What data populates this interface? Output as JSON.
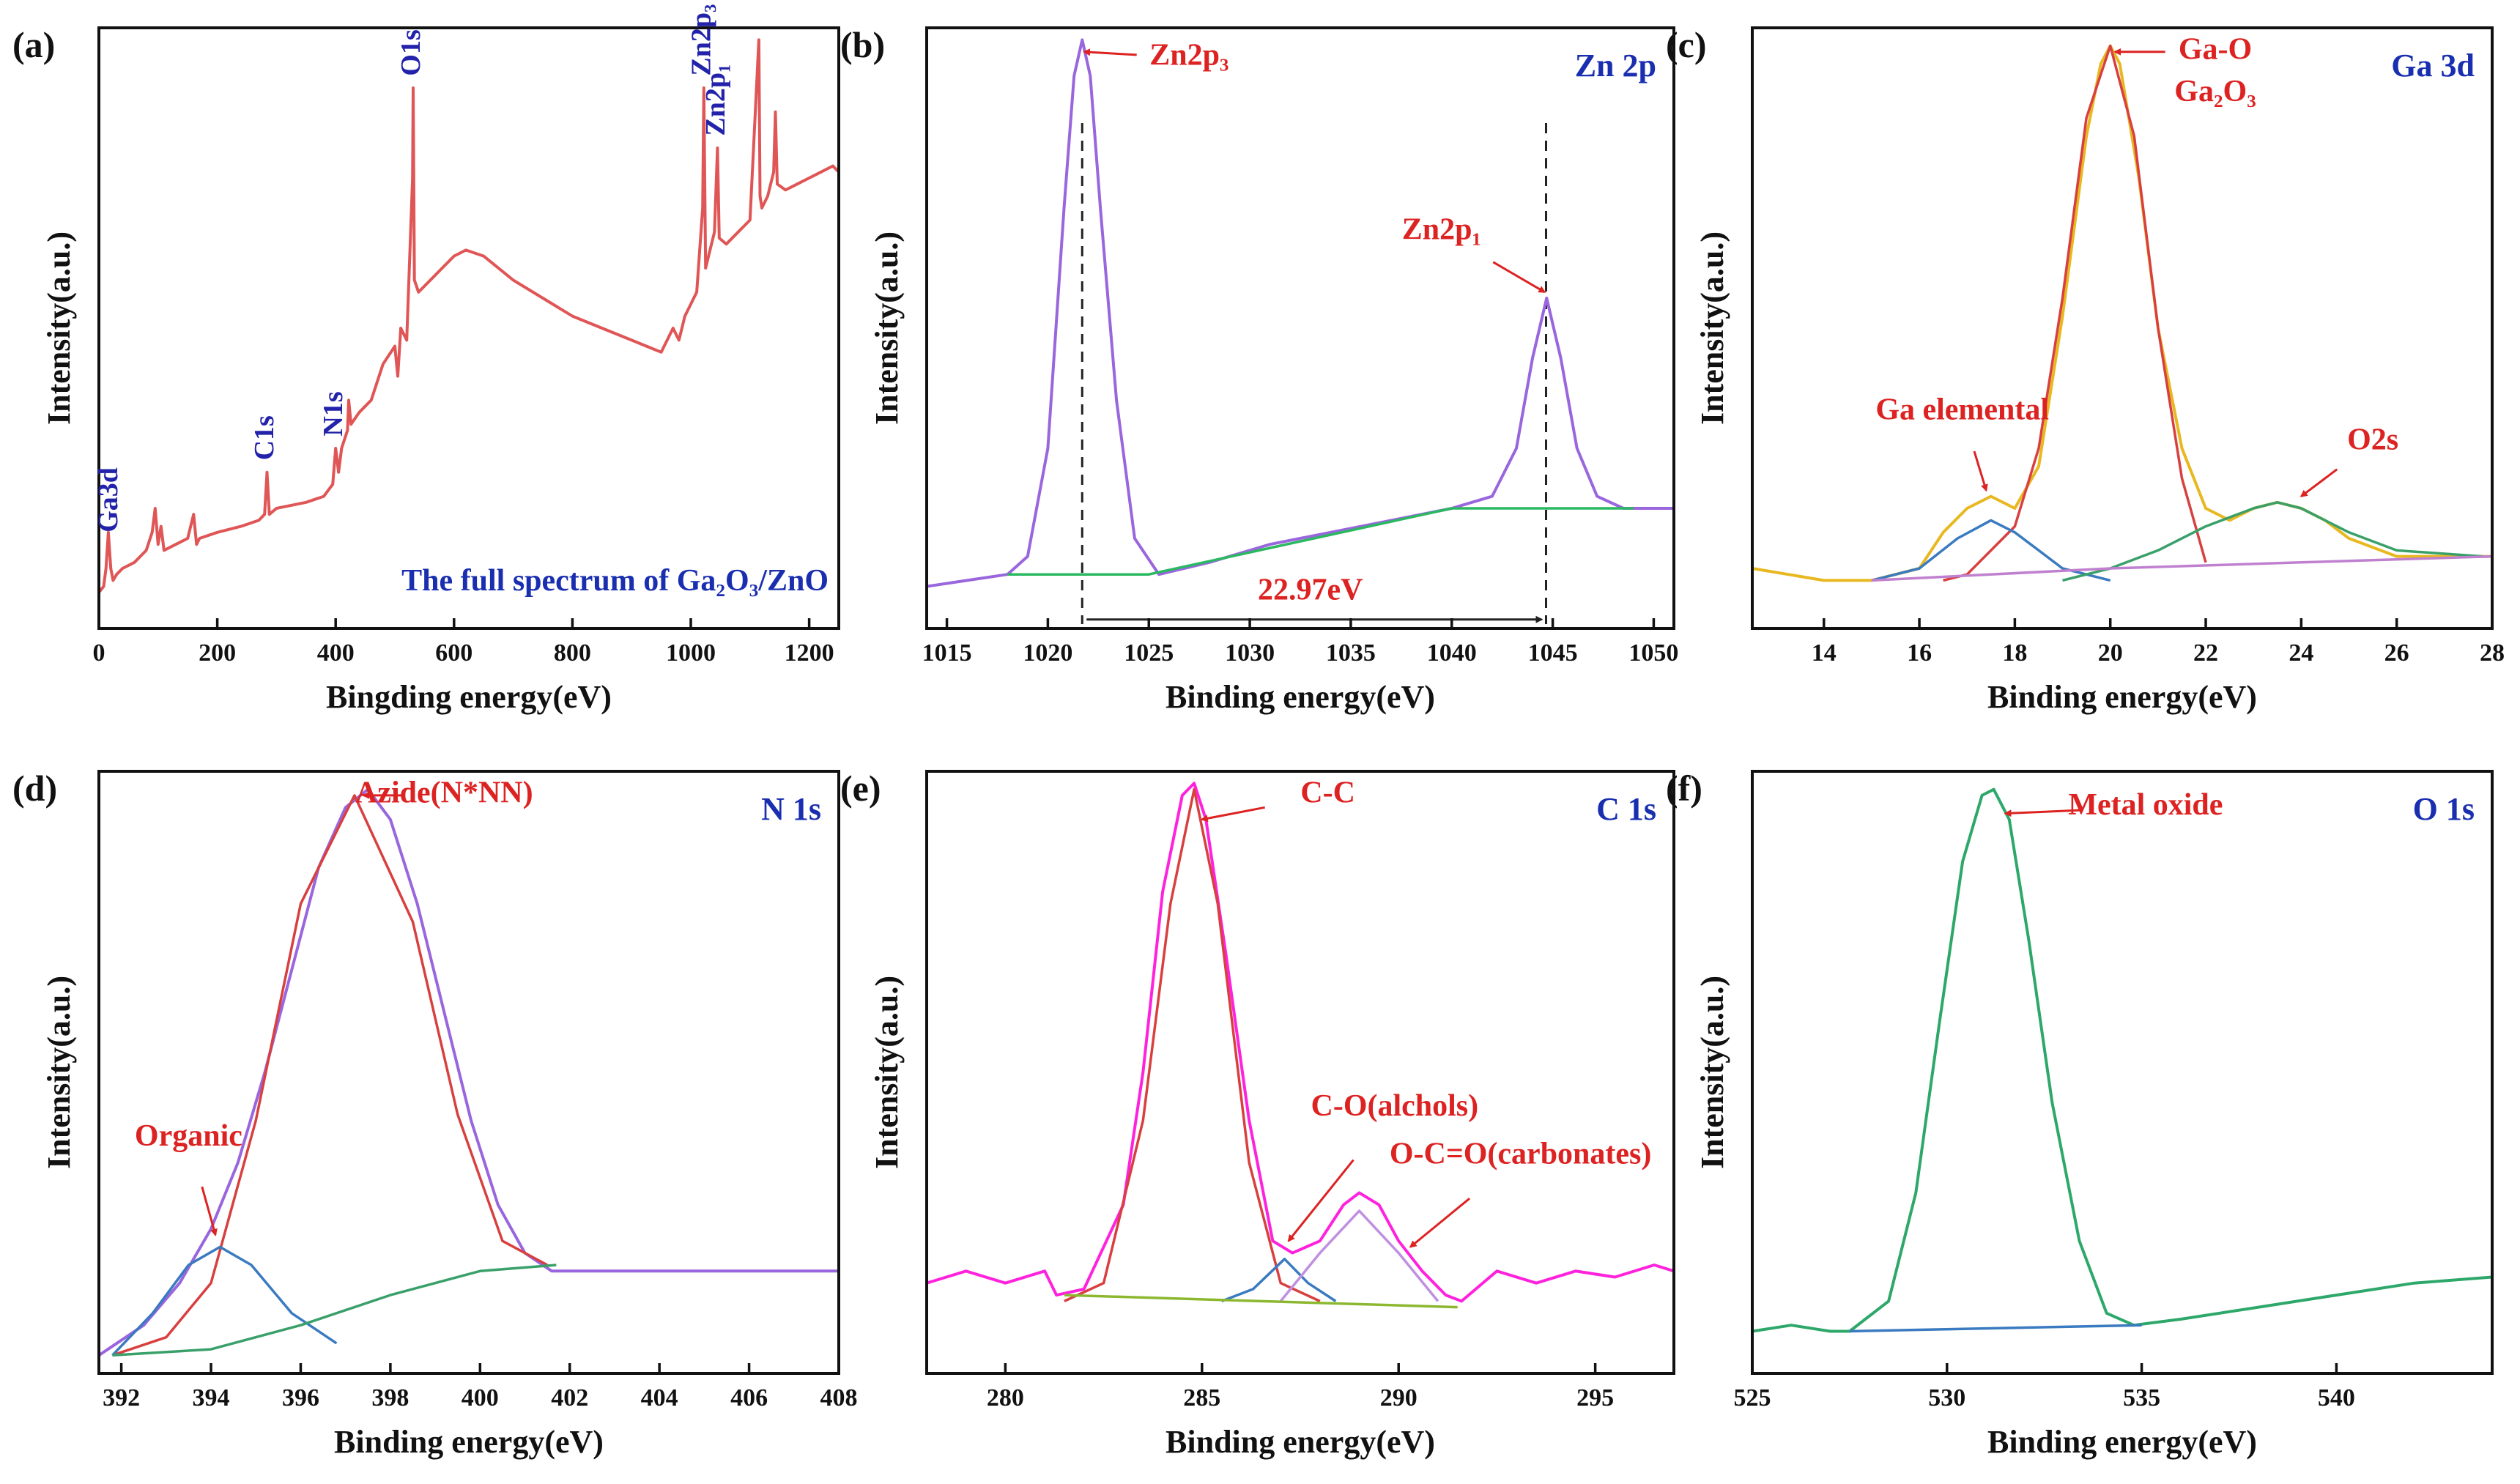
{
  "chart_data": [
    {
      "type": "line",
      "panel_label": "(a)",
      "title": "",
      "xlabel": "Bingding energy(eV)",
      "ylabel": "Intensity(a.u.)",
      "xlim": [
        0,
        1250
      ],
      "ylim": [
        0,
        1
      ],
      "xticks": [
        0,
        200,
        400,
        600,
        800,
        1000,
        1200
      ],
      "series": [
        {
          "name": "",
          "color": "#e05555",
          "role": "data",
          "x": [
            0,
            8,
            12,
            16,
            20,
            24,
            30,
            40,
            60,
            80,
            90,
            95,
            100,
            105,
            110,
            130,
            150,
            160,
            165,
            170,
            200,
            240,
            270,
            280,
            284,
            288,
            300,
            350,
            380,
            395,
            400,
            405,
            410,
            420,
            422,
            426,
            440,
            460,
            480,
            500,
            505,
            510,
            520,
            530,
            531,
            533,
            540,
            560,
            580,
            600,
            620,
            650,
            700,
            750,
            800,
            850,
            900,
            950,
            970,
            980,
            990,
            1000,
            1010,
            1020,
            1022,
            1025,
            1030,
            1040,
            1045,
            1048,
            1060,
            1080,
            1100,
            1115,
            1117,
            1120,
            1130,
            1140,
            1143,
            1146,
            1160,
            1180,
            1200,
            1220,
            1240,
            1250
          ],
          "y": [
            0.06,
            0.07,
            0.1,
            0.16,
            0.1,
            0.08,
            0.09,
            0.1,
            0.11,
            0.13,
            0.16,
            0.2,
            0.14,
            0.17,
            0.13,
            0.14,
            0.15,
            0.19,
            0.14,
            0.15,
            0.16,
            0.17,
            0.18,
            0.19,
            0.26,
            0.19,
            0.2,
            0.21,
            0.22,
            0.24,
            0.3,
            0.26,
            0.3,
            0.33,
            0.38,
            0.34,
            0.36,
            0.38,
            0.44,
            0.47,
            0.42,
            0.5,
            0.48,
            0.75,
            0.9,
            0.58,
            0.56,
            0.58,
            0.6,
            0.62,
            0.63,
            0.62,
            0.58,
            0.55,
            0.52,
            0.5,
            0.48,
            0.46,
            0.5,
            0.48,
            0.52,
            0.54,
            0.56,
            0.7,
            0.9,
            0.6,
            0.62,
            0.66,
            0.8,
            0.65,
            0.64,
            0.66,
            0.68,
            0.98,
            0.72,
            0.7,
            0.72,
            0.76,
            0.86,
            0.74,
            0.73,
            0.74,
            0.75,
            0.76,
            0.77,
            0.76
          ]
        }
      ],
      "annotations": [
        {
          "text": "Ga3d",
          "x": 20,
          "y": 0.16,
          "rotate": -90,
          "color": "#2222aa"
        },
        {
          "text": "C1s",
          "x": 284,
          "y": 0.28,
          "rotate": -90,
          "color": "#2222aa"
        },
        {
          "text": "N1s",
          "x": 400,
          "y": 0.32,
          "rotate": -90,
          "color": "#2222aa"
        },
        {
          "text": "O1s",
          "x": 531,
          "y": 0.92,
          "rotate": -90,
          "color": "#2222aa"
        },
        {
          "text": "Zn2p₃",
          "x": 1022,
          "y": 0.92,
          "rotate": -90,
          "color": "#2222aa"
        },
        {
          "text": "Zn2p₁",
          "x": 1046,
          "y": 0.82,
          "rotate": -90,
          "color": "#2222aa"
        }
      ],
      "caption": "The full spectrum of Ga₂O₃/ZnO"
    },
    {
      "type": "line",
      "panel_label": "(b)",
      "title": "Zn 2p",
      "xlabel": "Binding energy(eV)",
      "ylabel": "Intensity(a.u.)",
      "xlim": [
        1014,
        1051
      ],
      "ylim": [
        0,
        1
      ],
      "xticks": [
        1015,
        1020,
        1025,
        1030,
        1035,
        1040,
        1045,
        1050
      ],
      "series": [
        {
          "name": "",
          "color": "#9a66dd",
          "role": "data",
          "x": [
            1014,
            1016,
            1018,
            1019,
            1020,
            1020.8,
            1021.3,
            1021.7,
            1022.1,
            1022.6,
            1023.4,
            1024.3,
            1025.5,
            1028,
            1031,
            1034,
            1037,
            1040,
            1042,
            1043.2,
            1044,
            1044.7,
            1045.4,
            1046.2,
            1047.2,
            1048.5,
            1050,
            1051
          ],
          "y": [
            0.07,
            0.08,
            0.09,
            0.12,
            0.3,
            0.7,
            0.92,
            0.98,
            0.92,
            0.7,
            0.38,
            0.15,
            0.09,
            0.11,
            0.14,
            0.16,
            0.18,
            0.2,
            0.22,
            0.3,
            0.45,
            0.55,
            0.45,
            0.3,
            0.22,
            0.2,
            0.2,
            0.2
          ]
        },
        {
          "name": "",
          "color": "#2ab860",
          "role": "baseline",
          "x": [
            1018,
            1025,
            1040,
            1049
          ],
          "y": [
            0.09,
            0.09,
            0.2,
            0.2
          ]
        }
      ],
      "annotations": [
        {
          "text": "Zn2p₃",
          "x": 1027,
          "y": 0.95,
          "color": "#dd2222",
          "arrow_to": [
            1021.8,
            0.96
          ]
        },
        {
          "text": "Zn2p₁",
          "x": 1039.5,
          "y": 0.66,
          "color": "#dd2222",
          "arrow_to": [
            1044.6,
            0.56
          ]
        },
        {
          "text": "22.97eV",
          "x": 1033,
          "y": 0.06,
          "color": "#dd2222"
        }
      ],
      "vlines": [
        1021.7,
        1044.67
      ]
    },
    {
      "type": "line",
      "panel_label": "(c)",
      "title": "Ga 3d",
      "xlabel": "Binding energy(eV)",
      "ylabel": "Intensity(a.u.)",
      "xlim": [
        12.5,
        28
      ],
      "ylim": [
        0,
        1
      ],
      "xticks": [
        14,
        16,
        18,
        20,
        22,
        24,
        26,
        28
      ],
      "series": [
        {
          "name": "",
          "color": "#e8b820",
          "role": "envelope",
          "x": [
            12.5,
            14,
            15,
            16,
            16.5,
            17,
            17.5,
            18,
            18.5,
            19,
            19.5,
            19.8,
            20,
            20.2,
            20.6,
            21,
            21.5,
            22,
            22.5,
            23,
            23.5,
            24,
            24.5,
            25,
            26,
            27,
            28
          ],
          "y": [
            0.1,
            0.08,
            0.08,
            0.1,
            0.16,
            0.2,
            0.22,
            0.2,
            0.27,
            0.52,
            0.82,
            0.94,
            0.97,
            0.94,
            0.75,
            0.5,
            0.3,
            0.2,
            0.18,
            0.2,
            0.21,
            0.2,
            0.18,
            0.15,
            0.12,
            0.12,
            0.12
          ]
        },
        {
          "name": "",
          "color": "#d84040",
          "role": "component",
          "x": [
            16.5,
            17,
            18,
            18.5,
            19,
            19.5,
            20,
            20.5,
            21,
            21.5,
            22
          ],
          "y": [
            0.08,
            0.09,
            0.17,
            0.3,
            0.55,
            0.85,
            0.97,
            0.82,
            0.5,
            0.25,
            0.11
          ]
        },
        {
          "name": "",
          "color": "#3a7ac0",
          "role": "component",
          "x": [
            15,
            16,
            16.8,
            17.5,
            18,
            18.5,
            19,
            20
          ],
          "y": [
            0.08,
            0.1,
            0.15,
            0.18,
            0.16,
            0.13,
            0.1,
            0.08
          ]
        },
        {
          "name": "",
          "color": "#3aa06a",
          "role": "component",
          "x": [
            19,
            20,
            21,
            22,
            23,
            23.5,
            24,
            25,
            26,
            27.8
          ],
          "y": [
            0.08,
            0.1,
            0.13,
            0.17,
            0.2,
            0.21,
            0.2,
            0.16,
            0.13,
            0.12
          ]
        },
        {
          "name": "",
          "color": "#c080d0",
          "role": "baseline",
          "x": [
            15,
            20,
            24,
            28
          ],
          "y": [
            0.08,
            0.1,
            0.11,
            0.12
          ]
        }
      ],
      "annotations": [
        {
          "text": "Ga-O",
          "x": 22.2,
          "y": 0.96,
          "color": "#dd2222",
          "arrow_to": [
            20.1,
            0.96
          ]
        },
        {
          "text": "Ga₂O₃",
          "x": 22.2,
          "y": 0.89,
          "color": "#dd2222"
        },
        {
          "text": "Ga elemental",
          "x": 16.9,
          "y": 0.36,
          "color": "#dd2222",
          "arrow_to": [
            17.4,
            0.23
          ]
        },
        {
          "text": "O2s",
          "x": 25.5,
          "y": 0.31,
          "color": "#dd2222",
          "arrow_to": [
            24,
            0.22
          ]
        }
      ]
    },
    {
      "type": "line",
      "panel_label": "(d)",
      "title": "N 1s",
      "xlabel": "Binding energy(eV)",
      "ylabel": "Intensity(a.u.)",
      "xlim": [
        391.5,
        408
      ],
      "ylim": [
        0,
        1
      ],
      "xticks": [
        392,
        394,
        396,
        398,
        400,
        402,
        404,
        406,
        408
      ],
      "series": [
        {
          "name": "",
          "color": "#9a66dd",
          "role": "envelope",
          "x": [
            391.5,
            392.5,
            393.3,
            394,
            394.6,
            395.2,
            395.8,
            396.4,
            397,
            397.5,
            398,
            398.6,
            399.2,
            399.8,
            400.4,
            401,
            401.6,
            403,
            405,
            408
          ],
          "y": [
            0.03,
            0.08,
            0.15,
            0.24,
            0.35,
            0.5,
            0.67,
            0.84,
            0.94,
            0.97,
            0.92,
            0.78,
            0.6,
            0.42,
            0.28,
            0.2,
            0.17,
            0.17,
            0.17,
            0.17
          ]
        },
        {
          "name": "",
          "color": "#d84040",
          "role": "component",
          "x": [
            391.8,
            393,
            394,
            395,
            396,
            397.2,
            398.5,
            399.5,
            400.5,
            401.5
          ],
          "y": [
            0.03,
            0.06,
            0.15,
            0.42,
            0.78,
            0.96,
            0.75,
            0.43,
            0.22,
            0.18
          ]
        },
        {
          "name": "",
          "color": "#3a7ac0",
          "role": "component",
          "x": [
            391.8,
            392.7,
            393.5,
            394.2,
            394.9,
            395.8,
            396.8
          ],
          "y": [
            0.03,
            0.1,
            0.18,
            0.21,
            0.18,
            0.1,
            0.05
          ]
        },
        {
          "name": "",
          "color": "#3aa06a",
          "role": "baseline",
          "x": [
            391.8,
            394,
            396,
            398,
            400,
            401.7
          ],
          "y": [
            0.03,
            0.04,
            0.08,
            0.13,
            0.17,
            0.18
          ]
        }
      ],
      "annotations": [
        {
          "text": "Azide(N*NN)",
          "x": 399.2,
          "y": 0.96,
          "color": "#dd2222",
          "arrow_to": [
            397.4,
            0.96
          ]
        },
        {
          "text": "Organic",
          "x": 393.5,
          "y": 0.39,
          "color": "#dd2222",
          "arrow_to": [
            394.1,
            0.23
          ]
        }
      ]
    },
    {
      "type": "line",
      "panel_label": "(e)",
      "title": "C 1s",
      "xlabel": "Binding energy(eV)",
      "ylabel": "Intensity(a.u.)",
      "xlim": [
        278,
        297
      ],
      "ylim": [
        0,
        1
      ],
      "xticks": [
        280,
        285,
        290,
        295
      ],
      "series": [
        {
          "name": "",
          "color": "#ff22dd",
          "role": "data",
          "x": [
            278,
            279,
            280,
            281,
            281.3,
            282,
            283,
            283.5,
            284,
            284.5,
            284.8,
            285.1,
            285.6,
            286.2,
            286.8,
            287.3,
            288,
            288.6,
            289,
            289.5,
            290,
            290.6,
            291.2,
            291.6,
            292.5,
            293.5,
            294.5,
            295.5,
            296.5,
            297
          ],
          "y": [
            0.15,
            0.17,
            0.15,
            0.17,
            0.13,
            0.14,
            0.28,
            0.5,
            0.8,
            0.96,
            0.98,
            0.92,
            0.7,
            0.42,
            0.22,
            0.2,
            0.22,
            0.28,
            0.3,
            0.28,
            0.22,
            0.17,
            0.13,
            0.12,
            0.17,
            0.15,
            0.17,
            0.16,
            0.18,
            0.17
          ]
        },
        {
          "name": "",
          "color": "#d84040",
          "role": "component",
          "x": [
            281.5,
            282.5,
            283.5,
            284.2,
            284.8,
            285.4,
            286.2,
            287,
            288
          ],
          "y": [
            0.12,
            0.15,
            0.42,
            0.78,
            0.97,
            0.78,
            0.35,
            0.15,
            0.12
          ]
        },
        {
          "name": "",
          "color": "#3a7ac0",
          "role": "component",
          "x": [
            285.5,
            286.3,
            287.1,
            287.7,
            288.4
          ],
          "y": [
            0.12,
            0.14,
            0.19,
            0.15,
            0.12
          ]
        },
        {
          "name": "",
          "color": "#c090e0",
          "role": "component",
          "x": [
            287,
            288,
            289,
            290,
            291
          ],
          "y": [
            0.12,
            0.2,
            0.27,
            0.2,
            0.12
          ]
        },
        {
          "name": "",
          "color": "#8cb830",
          "role": "baseline",
          "x": [
            281.5,
            291.5
          ],
          "y": [
            0.13,
            0.11
          ]
        }
      ],
      "annotations": [
        {
          "text": "C-C",
          "x": 288.2,
          "y": 0.96,
          "color": "#dd2222",
          "arrow_to": [
            285,
            0.92
          ]
        },
        {
          "text": "C-O(alchols)",
          "x": 289.9,
          "y": 0.44,
          "color": "#dd2222",
          "arrow_to": [
            287.2,
            0.22
          ]
        },
        {
          "text": "O-C=O(carbonates)",
          "x": 293.1,
          "y": 0.36,
          "color": "#dd2222",
          "arrow_to": [
            290.3,
            0.21
          ]
        }
      ]
    },
    {
      "type": "line",
      "panel_label": "(f)",
      "title": "O 1s",
      "xlabel": "Binding energy(eV)",
      "ylabel": "Intensity(a.u.)",
      "xlim": [
        525,
        544
      ],
      "ylim": [
        0,
        1
      ],
      "xticks": [
        525,
        530,
        535,
        540
      ],
      "series": [
        {
          "name": "",
          "color": "#2ea86a",
          "role": "data",
          "x": [
            525,
            526,
            527,
            527.5,
            528.5,
            529.2,
            529.8,
            530.4,
            530.9,
            531.2,
            531.6,
            532.1,
            532.7,
            533.4,
            534.1,
            534.8,
            536,
            538,
            540,
            542,
            544
          ],
          "y": [
            0.07,
            0.08,
            0.07,
            0.07,
            0.12,
            0.3,
            0.58,
            0.85,
            0.96,
            0.97,
            0.92,
            0.72,
            0.45,
            0.22,
            0.1,
            0.08,
            0.09,
            0.11,
            0.13,
            0.15,
            0.16
          ]
        },
        {
          "name": "",
          "color": "#3a7ac0",
          "role": "baseline",
          "x": [
            527.5,
            535
          ],
          "y": [
            0.07,
            0.08
          ]
        }
      ],
      "annotations": [
        {
          "text": "Metal oxide",
          "x": 535.1,
          "y": 0.94,
          "color": "#dd2222",
          "arrow_to": [
            531.5,
            0.93
          ]
        }
      ]
    }
  ]
}
